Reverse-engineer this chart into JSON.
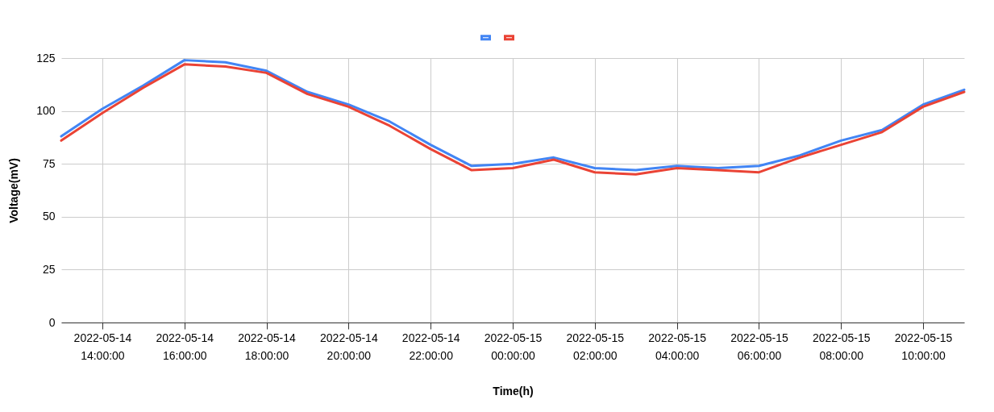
{
  "chart_data": {
    "type": "line",
    "xlabel": "Time(h)",
    "ylabel": "Voltage(mV)",
    "x": [
      "2022-05-14T13:00",
      "2022-05-14T14:00",
      "2022-05-14T15:00",
      "2022-05-14T16:00",
      "2022-05-14T17:00",
      "2022-05-14T18:00",
      "2022-05-14T19:00",
      "2022-05-14T20:00",
      "2022-05-14T21:00",
      "2022-05-14T22:00",
      "2022-05-14T23:00",
      "2022-05-15T00:00",
      "2022-05-15T01:00",
      "2022-05-15T02:00",
      "2022-05-15T03:00",
      "2022-05-15T04:00",
      "2022-05-15T05:00",
      "2022-05-15T06:00",
      "2022-05-15T07:00",
      "2022-05-15T08:00",
      "2022-05-15T09:00",
      "2022-05-15T10:00",
      "2022-05-15T11:00"
    ],
    "series": [
      {
        "color": "#4285f4",
        "values": [
          88,
          101,
          112,
          124,
          123,
          119,
          109,
          103,
          95,
          84,
          74,
          75,
          78,
          73,
          72,
          74,
          73,
          74,
          79,
          86,
          91,
          103,
          110
        ]
      },
      {
        "color": "#ea4335",
        "values": [
          86,
          99,
          111,
          122,
          121,
          118,
          108,
          102,
          93,
          82,
          72,
          73,
          77,
          71,
          70,
          73,
          72,
          71,
          78,
          84,
          90,
          102,
          109
        ]
      }
    ],
    "xlim": [
      "2022-05-14T13:00",
      "2022-05-15T11:00"
    ],
    "xticks": [
      {
        "value": "2022-05-14T14:00",
        "label": "2022-05-14 14:00:00"
      },
      {
        "value": "2022-05-14T16:00",
        "label": "2022-05-14 16:00:00"
      },
      {
        "value": "2022-05-14T18:00",
        "label": "2022-05-14 18:00:00"
      },
      {
        "value": "2022-05-14T20:00",
        "label": "2022-05-14 20:00:00"
      },
      {
        "value": "2022-05-14T22:00",
        "label": "2022-05-14 22:00:00"
      },
      {
        "value": "2022-05-15T00:00",
        "label": "2022-05-15 00:00:00"
      },
      {
        "value": "2022-05-15T02:00",
        "label": "2022-05-15 02:00:00"
      },
      {
        "value": "2022-05-15T04:00",
        "label": "2022-05-15 04:00:00"
      },
      {
        "value": "2022-05-15T06:00",
        "label": "2022-05-15 06:00:00"
      },
      {
        "value": "2022-05-15T08:00",
        "label": "2022-05-15 08:00:00"
      },
      {
        "value": "2022-05-15T10:00",
        "label": "2022-05-15 10:00:00"
      }
    ],
    "ylim": [
      0,
      125
    ],
    "yticks": [
      0,
      25,
      50,
      75,
      100,
      125
    ],
    "grid": true,
    "marker": "none",
    "line_style": "solid"
  }
}
